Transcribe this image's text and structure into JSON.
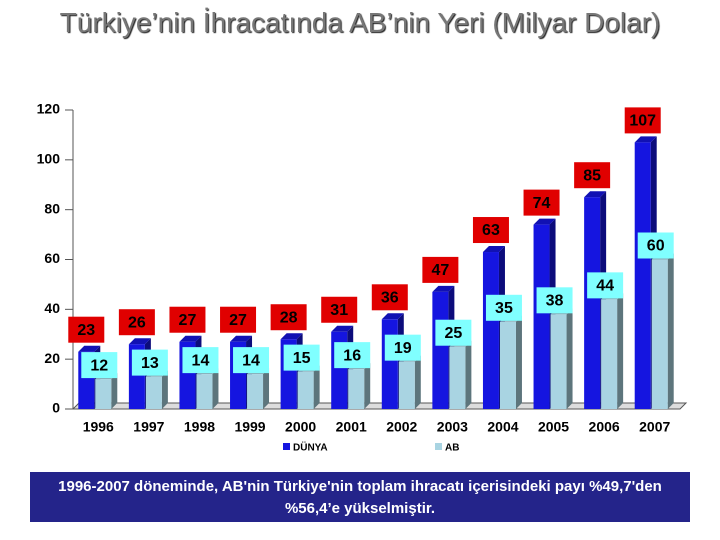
{
  "chart_data": {
    "type": "bar3d",
    "title": "Türkiye’nin İhracatında AB’nin Yeri (Milyar Dolar)",
    "categories": [
      "1996",
      "1997",
      "1998",
      "1999",
      "2000",
      "2001",
      "2002",
      "2003",
      "2004",
      "2005",
      "2006",
      "2007"
    ],
    "series": [
      {
        "name": "DÜNYA",
        "color": "#1515e0",
        "label_color": "#e00000",
        "values": [
          23,
          26,
          27,
          27,
          28,
          31,
          36,
          47,
          63,
          74,
          85,
          107
        ]
      },
      {
        "name": "AB",
        "color": "#a9d4e2",
        "label_color": "#80ffff",
        "values": [
          12,
          13,
          14,
          14,
          15,
          16,
          19,
          25,
          35,
          38,
          44,
          60
        ]
      }
    ],
    "ylim": [
      0,
      120
    ],
    "yticks": [
      0,
      20,
      40,
      60,
      80,
      100,
      120
    ],
    "grid": false,
    "caption": "1996-2007 döneminde, AB'nin Türkiye'nin toplam ihracatı içerisindeki payı %49,7'den %56,4’e yükselmiştir."
  }
}
